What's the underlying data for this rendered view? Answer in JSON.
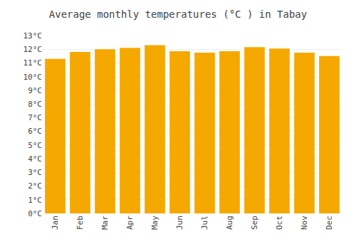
{
  "chart_data": {
    "type": "bar",
    "title": "Average monthly temperatures (°C ) in Tabay",
    "categories": [
      "Jan",
      "Feb",
      "Mar",
      "Apr",
      "May",
      "Jun",
      "Jul",
      "Aug",
      "Sep",
      "Oct",
      "Nov",
      "Dec"
    ],
    "values": [
      11.3,
      11.8,
      12.0,
      12.1,
      12.3,
      11.85,
      11.75,
      11.85,
      12.15,
      12.05,
      11.75,
      11.5
    ],
    "color": "#F5A800",
    "ylim": [
      0,
      13
    ],
    "yticks": [
      {
        "value": 0,
        "label": "0°C"
      },
      {
        "value": 1,
        "label": "1°C"
      },
      {
        "value": 2,
        "label": "2°C"
      },
      {
        "value": 3,
        "label": "3°C"
      },
      {
        "value": 4,
        "label": "4°C"
      },
      {
        "value": 5,
        "label": "5°C"
      },
      {
        "value": 6,
        "label": "6°C"
      },
      {
        "value": 7,
        "label": "7°C"
      },
      {
        "value": 8,
        "label": "8°C"
      },
      {
        "value": 9,
        "label": "9°C"
      },
      {
        "value": 10,
        "label": "10°C"
      },
      {
        "value": 11,
        "label": "11°C"
      },
      {
        "value": 12,
        "label": "12°C"
      },
      {
        "value": 13,
        "label": "13°C"
      }
    ],
    "grid": true
  }
}
